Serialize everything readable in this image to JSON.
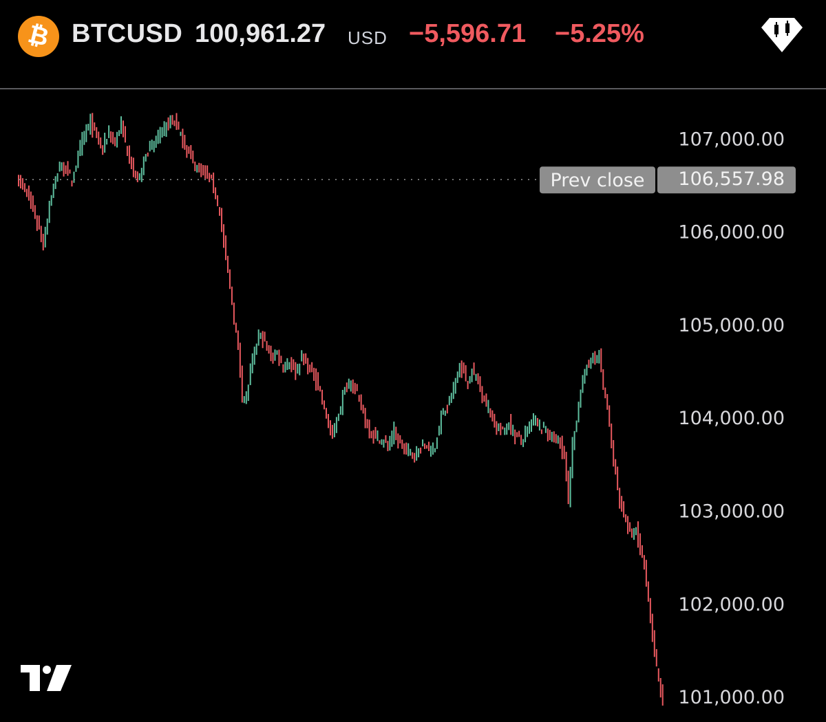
{
  "header": {
    "symbol": "BTCUSD",
    "price": "100,961.27",
    "currency": "USD",
    "change": "−5,596.71",
    "change_pct": "−5.25%",
    "coin_icon": "bitcoin-icon",
    "coin_glyph": "₿",
    "chart_type_icon": "candlestick-icon"
  },
  "colors": {
    "background": "#000000",
    "up": "#5fbf9f",
    "down": "#e9595f",
    "negative_text": "#f05a5f",
    "bitcoin_orange": "#f7931a"
  },
  "chart_data": {
    "type": "ohlc",
    "series": "BTCUSD",
    "prev_close": {
      "label": "Prev close",
      "value": "106,557.98",
      "y": 106557.98
    },
    "y_ticks": [
      "107,000.00",
      "106,000.00",
      "105,000.00",
      "104,000.00",
      "103,000.00",
      "102,000.00",
      "101,000.00"
    ],
    "y_tick_values": [
      107000,
      106000,
      105000,
      104000,
      103000,
      102000,
      101000
    ],
    "ylim": [
      100860,
      107380
    ],
    "grid": false,
    "anchors": [
      [
        0,
        106550
      ],
      [
        4,
        106400
      ],
      [
        7,
        106230
      ],
      [
        10,
        106020
      ],
      [
        12,
        105850
      ],
      [
        15,
        106300
      ],
      [
        18,
        106550
      ],
      [
        20,
        106700
      ],
      [
        23,
        106660
      ],
      [
        26,
        106550
      ],
      [
        29,
        106800
      ],
      [
        32,
        107050
      ],
      [
        35,
        107180
      ],
      [
        38,
        107000
      ],
      [
        41,
        106900
      ],
      [
        44,
        107070
      ],
      [
        47,
        106950
      ],
      [
        50,
        107150
      ],
      [
        53,
        106850
      ],
      [
        55,
        106720
      ],
      [
        57,
        106550
      ],
      [
        59,
        106580
      ],
      [
        62,
        106850
      ],
      [
        65,
        106900
      ],
      [
        68,
        107020
      ],
      [
        71,
        107100
      ],
      [
        74,
        107200
      ],
      [
        76,
        107180
      ],
      [
        78,
        107100
      ],
      [
        80,
        106950
      ],
      [
        83,
        106850
      ],
      [
        86,
        106700
      ],
      [
        89,
        106680
      ],
      [
        92,
        106600
      ],
      [
        95,
        106500
      ],
      [
        98,
        106200
      ],
      [
        101,
        105700
      ],
      [
        103,
        105400
      ],
      [
        105,
        105050
      ],
      [
        107,
        104750
      ],
      [
        109,
        104250
      ],
      [
        111,
        104200
      ],
      [
        113,
        104500
      ],
      [
        115,
        104700
      ],
      [
        117,
        104900
      ],
      [
        120,
        104800
      ],
      [
        123,
        104650
      ],
      [
        126,
        104700
      ],
      [
        129,
        104550
      ],
      [
        132,
        104600
      ],
      [
        135,
        104500
      ],
      [
        138,
        104650
      ],
      [
        141,
        104550
      ],
      [
        144,
        104450
      ],
      [
        147,
        104300
      ],
      [
        150,
        104000
      ],
      [
        153,
        103800
      ],
      [
        156,
        104050
      ],
      [
        159,
        104300
      ],
      [
        162,
        104400
      ],
      [
        165,
        104250
      ],
      [
        168,
        104050
      ],
      [
        171,
        103850
      ],
      [
        174,
        103800
      ],
      [
        177,
        103750
      ],
      [
        180,
        103700
      ],
      [
        183,
        103850
      ],
      [
        186,
        103700
      ],
      [
        189,
        103650
      ],
      [
        192,
        103600
      ],
      [
        195,
        103650
      ],
      [
        198,
        103700
      ],
      [
        201,
        103650
      ],
      [
        203,
        103700
      ],
      [
        206,
        104000
      ],
      [
        209,
        104100
      ],
      [
        212,
        104300
      ],
      [
        215,
        104550
      ],
      [
        217,
        104500
      ],
      [
        219,
        104350
      ],
      [
        221,
        104500
      ],
      [
        224,
        104400
      ],
      [
        227,
        104200
      ],
      [
        230,
        104050
      ],
      [
        233,
        103900
      ],
      [
        236,
        103850
      ],
      [
        239,
        103950
      ],
      [
        242,
        103800
      ],
      [
        245,
        103750
      ],
      [
        248,
        103850
      ],
      [
        251,
        104000
      ],
      [
        254,
        103900
      ],
      [
        257,
        103850
      ],
      [
        260,
        103800
      ],
      [
        263,
        103750
      ],
      [
        266,
        103600
      ],
      [
        268,
        103100
      ],
      [
        270,
        103700
      ],
      [
        272,
        104000
      ],
      [
        274,
        104300
      ],
      [
        277,
        104550
      ],
      [
        279,
        104650
      ],
      [
        281,
        104600
      ],
      [
        283,
        104700
      ],
      [
        285,
        104300
      ],
      [
        287,
        104100
      ],
      [
        289,
        103700
      ],
      [
        291,
        103400
      ],
      [
        293,
        103100
      ],
      [
        295,
        102950
      ],
      [
        297,
        102800
      ],
      [
        299,
        102700
      ],
      [
        301,
        102800
      ],
      [
        303,
        102550
      ],
      [
        305,
        102400
      ],
      [
        307,
        102050
      ],
      [
        309,
        101650
      ],
      [
        311,
        101300
      ],
      [
        313,
        101050
      ],
      [
        314,
        100961
      ]
    ]
  }
}
